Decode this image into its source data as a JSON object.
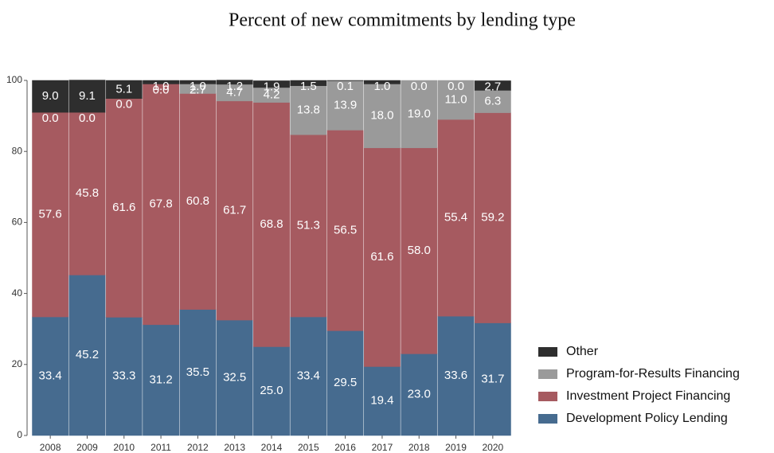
{
  "chart_data": {
    "type": "stacked_bar",
    "title": "Percent of new commitments by lending type",
    "categories": [
      "2008",
      "2009",
      "2010",
      "2011",
      "2012",
      "2013",
      "2014",
      "2015",
      "2016",
      "2017",
      "2018",
      "2019",
      "2020"
    ],
    "series": [
      {
        "name": "Development Policy Lending",
        "color": "#466b8f",
        "values": [
          33.4,
          45.2,
          33.3,
          31.2,
          35.5,
          32.5,
          25.0,
          33.4,
          29.5,
          19.4,
          23.0,
          33.6,
          31.7
        ],
        "value_labels": [
          "33.4",
          "45.2",
          "33.3",
          "31.2",
          "35.5",
          "32.5",
          "25.0",
          "33.4",
          "29.5",
          "19.4",
          "23.0",
          "33.6",
          "31.7"
        ]
      },
      {
        "name": "Investment Project Financing",
        "color": "#a65a60",
        "values": [
          57.6,
          45.8,
          61.6,
          67.8,
          60.8,
          61.7,
          68.8,
          51.3,
          56.5,
          61.6,
          58.0,
          55.4,
          59.2
        ],
        "value_labels": [
          "57.6",
          "45.8",
          "61.6",
          "67.8",
          "60.8",
          "61.7",
          "68.8",
          "51.3",
          "56.5",
          "61.6",
          "58.0",
          "55.4",
          "59.2"
        ]
      },
      {
        "name": "Program-for-Results Financing",
        "color": "#9a9a9a",
        "values": [
          0.0,
          0.0,
          0.0,
          0.0,
          2.7,
          4.7,
          4.2,
          13.8,
          13.9,
          18.0,
          19.0,
          11.0,
          6.3
        ],
        "value_labels": [
          "0.0",
          "0.0",
          "0.0",
          "0.0",
          "2.7",
          "4.7",
          "4.2",
          "13.8",
          "13.9",
          "18.0",
          "19.0",
          "11.0",
          "6.3"
        ]
      },
      {
        "name": "Other",
        "color": "#2e2e2e",
        "values": [
          9.0,
          9.1,
          5.1,
          1.0,
          1.0,
          1.2,
          1.9,
          1.5,
          0.1,
          1.0,
          0.0,
          0.0,
          2.7
        ],
        "value_labels": [
          "9.0",
          "9.1",
          "5.1",
          "1.0",
          "1.0",
          "1.2",
          "1.9",
          "1.5",
          "0.1",
          "1.0",
          "0.0",
          "0.0",
          "2.7"
        ]
      }
    ],
    "ylim": [
      0,
      100
    ],
    "yticks": [
      0,
      20,
      40,
      60,
      80,
      100
    ]
  }
}
